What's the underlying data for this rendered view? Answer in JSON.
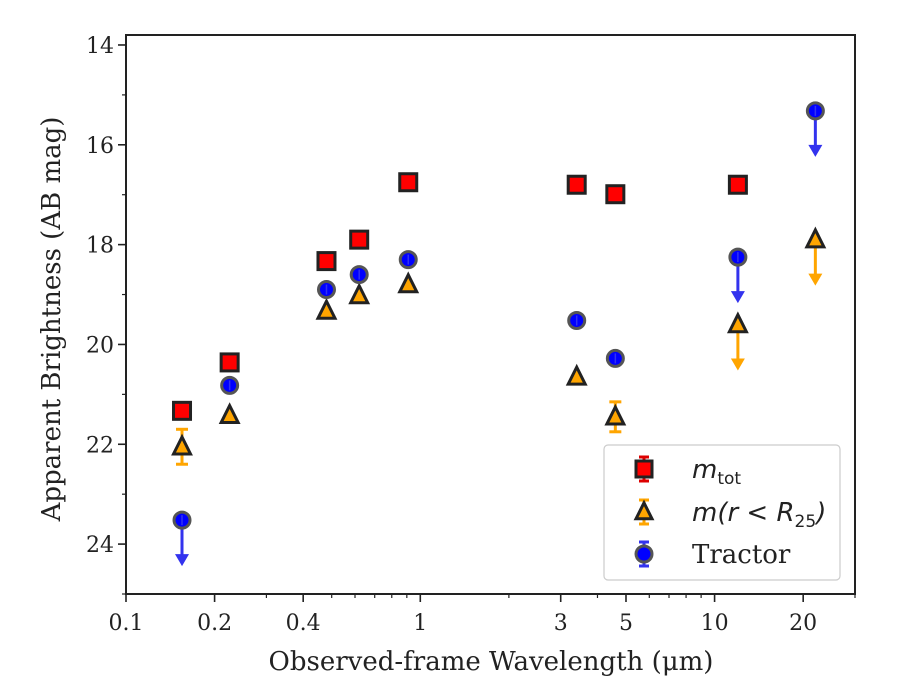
{
  "chart_data": {
    "type": "scatter",
    "xlabel": "Observed-frame Wavelength (μm)",
    "ylabel": "Apparent Brightness (AB mag)",
    "xscale": "log",
    "xlim": [
      0.1,
      30
    ],
    "ylim": [
      25,
      13.8
    ],
    "y_inverted": true,
    "x_ticks": [
      0.1,
      0.2,
      0.4,
      1,
      3,
      5,
      10,
      20
    ],
    "x_tick_labels": [
      "0.1",
      "0.2",
      "0.4",
      "1",
      "3",
      "5",
      "10",
      "20"
    ],
    "y_ticks": [
      14,
      16,
      18,
      20,
      22,
      24
    ],
    "y_tick_labels": [
      "14",
      "16",
      "18",
      "20",
      "22",
      "24"
    ],
    "grid": false,
    "legend_position": "lower-right",
    "series": [
      {
        "name_main": "m",
        "name_sub": "tot",
        "marker": "square",
        "color": "#ff0000",
        "edge_color": "#222222",
        "points": [
          {
            "x": 0.155,
            "y": 21.33
          },
          {
            "x": 0.225,
            "y": 20.36
          },
          {
            "x": 0.48,
            "y": 18.33
          },
          {
            "x": 0.62,
            "y": 17.9
          },
          {
            "x": 0.91,
            "y": 16.75
          },
          {
            "x": 3.4,
            "y": 16.8
          },
          {
            "x": 4.6,
            "y": 16.99
          },
          {
            "x": 12.0,
            "y": 16.8
          }
        ]
      },
      {
        "name_main": "m(r < R",
        "name_sub": "25",
        "name_tail": ")",
        "marker": "triangle",
        "color": "#ffa500",
        "edge_color": "#222222",
        "points": [
          {
            "x": 0.155,
            "y": 22.05,
            "err": 0.35
          },
          {
            "x": 0.225,
            "y": 21.42
          },
          {
            "x": 0.48,
            "y": 19.33
          },
          {
            "x": 0.62,
            "y": 19.02
          },
          {
            "x": 0.91,
            "y": 18.8
          },
          {
            "x": 3.4,
            "y": 20.65
          },
          {
            "x": 4.6,
            "y": 21.45,
            "err": 0.3
          },
          {
            "x": 12.0,
            "y": 19.6,
            "upper_limit": true
          },
          {
            "x": 22.0,
            "y": 17.9,
            "upper_limit": true
          }
        ]
      },
      {
        "name": "Tractor",
        "marker": "circle",
        "color": "#0000ff",
        "edge_color": "#555555",
        "points": [
          {
            "x": 0.155,
            "y": 23.52,
            "upper_limit": true
          },
          {
            "x": 0.225,
            "y": 20.82
          },
          {
            "x": 0.48,
            "y": 18.9
          },
          {
            "x": 0.62,
            "y": 18.6
          },
          {
            "x": 0.91,
            "y": 18.3
          },
          {
            "x": 3.4,
            "y": 19.52
          },
          {
            "x": 4.6,
            "y": 20.28
          },
          {
            "x": 12.0,
            "y": 18.25,
            "upper_limit": true
          },
          {
            "x": 22.0,
            "y": 15.32,
            "upper_limit": true
          }
        ]
      }
    ]
  }
}
